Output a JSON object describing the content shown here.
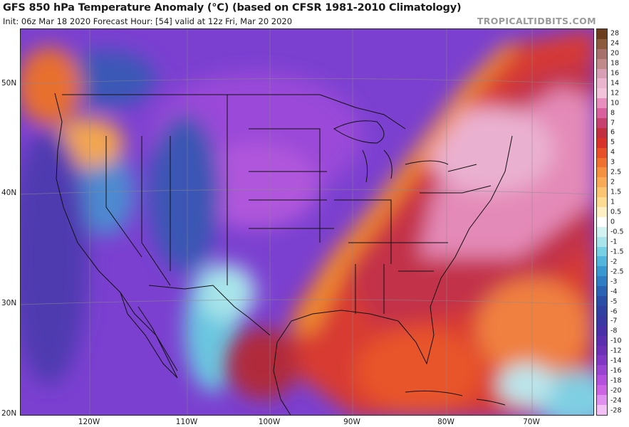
{
  "header": {
    "title": "GFS 850 hPa Temperature Anomaly (°C) (based on CFSR 1981-2010 Climatology)",
    "subtitle": "Init: 06z Mar 18 2020   Forecast Hour: [54]   valid at 12z Fri, Mar 20 2020",
    "brand": "TROPICALTIDBITS.COM"
  },
  "map": {
    "latitude_labels": [
      "50N",
      "40N",
      "30N",
      "20N"
    ],
    "longitude_labels": [
      "120W",
      "110W",
      "100W",
      "90W",
      "80W",
      "70W"
    ]
  },
  "legend": {
    "labels": [
      "28",
      "24",
      "20",
      "18",
      "16",
      "14",
      "12",
      "10",
      "8",
      "7",
      "6",
      "5",
      "4",
      "3",
      "2.5",
      "2",
      "1.5",
      "1",
      "0.5",
      "0",
      "-0.5",
      "-1",
      "-1.5",
      "-2",
      "-2.5",
      "-3",
      "-4",
      "-5",
      "-6",
      "-7",
      "-8",
      "-10",
      "-12",
      "-14",
      "-16",
      "-18",
      "-20",
      "-24",
      "-28"
    ],
    "colors": [
      "#6b3d1e",
      "#8c5a3c",
      "#a8706a",
      "#c08a8a",
      "#d89fb4",
      "#eab4cf",
      "#f2c4dc",
      "#e88fbe",
      "#d8609c",
      "#c8406e",
      "#c23040",
      "#d8322a",
      "#e8502a",
      "#f07030",
      "#f49040",
      "#f8aa56",
      "#fbc472",
      "#fddc92",
      "#fef0c4",
      "#ffffff",
      "#d2f2f2",
      "#a8e4ea",
      "#78d0e4",
      "#52b6dc",
      "#3a98d0",
      "#2f7ec4",
      "#2a62b4",
      "#2a4ea6",
      "#3040a0",
      "#3a38a2",
      "#4a30a8",
      "#5a2eae",
      "#6c30b6",
      "#8038c4",
      "#9a44d2",
      "#b450dc",
      "#cc64e4",
      "#e090ee",
      "#f2c0f4"
    ]
  }
}
